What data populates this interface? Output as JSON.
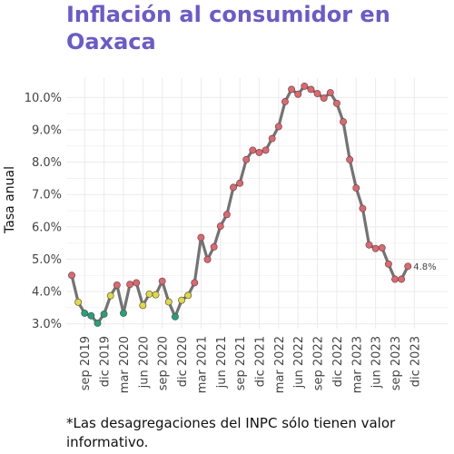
{
  "chart_data": {
    "type": "line",
    "title": "Inflación al consumidor en Oaxaca",
    "ylabel": "Tasa anual",
    "xlabel": "",
    "ylim": [
      2.85,
      10.6
    ],
    "yticks": [
      {
        "value": 3.0,
        "label": "3.0%"
      },
      {
        "value": 4.0,
        "label": "4.0%"
      },
      {
        "value": 5.0,
        "label": "5.0%"
      },
      {
        "value": 6.0,
        "label": "6.0%"
      },
      {
        "value": 7.0,
        "label": "7.0%"
      },
      {
        "value": 8.0,
        "label": "8.0%"
      },
      {
        "value": 9.0,
        "label": "9.0%"
      },
      {
        "value": 10.0,
        "label": "10.0%"
      }
    ],
    "xticks": [
      {
        "index": 2,
        "label": "sep 2019"
      },
      {
        "index": 5,
        "label": "dic 2019"
      },
      {
        "index": 8,
        "label": "mar 2020"
      },
      {
        "index": 11,
        "label": "jun 2020"
      },
      {
        "index": 14,
        "label": "sep 2020"
      },
      {
        "index": 17,
        "label": "dic 2020"
      },
      {
        "index": 20,
        "label": "mar 2021"
      },
      {
        "index": 23,
        "label": "jun 2021"
      },
      {
        "index": 26,
        "label": "sep 2021"
      },
      {
        "index": 29,
        "label": "dic 2021"
      },
      {
        "index": 32,
        "label": "mar 2022"
      },
      {
        "index": 35,
        "label": "jun 2022"
      },
      {
        "index": 38,
        "label": "sep 2022"
      },
      {
        "index": 41,
        "label": "dic 2022"
      },
      {
        "index": 44,
        "label": "mar 2023"
      },
      {
        "index": 47,
        "label": "jun 2023"
      },
      {
        "index": 50,
        "label": "sep 2023"
      },
      {
        "index": 53,
        "label": "dic 2023"
      }
    ],
    "values": [
      4.5,
      3.67,
      3.33,
      3.25,
      3.02,
      3.3,
      3.87,
      4.2,
      3.33,
      4.22,
      4.27,
      3.57,
      3.92,
      3.9,
      4.32,
      3.68,
      3.22,
      3.73,
      3.88,
      4.27,
      5.67,
      4.99,
      5.38,
      6.02,
      6.38,
      7.22,
      7.35,
      8.08,
      8.37,
      8.3,
      8.37,
      8.73,
      9.1,
      9.87,
      10.25,
      10.1,
      10.35,
      10.25,
      10.12,
      9.98,
      10.15,
      9.82,
      9.25,
      8.08,
      7.2,
      6.57,
      5.44,
      5.33,
      5.35,
      4.85,
      4.38,
      4.38,
      4.78
    ],
    "point_colors": [
      "#e8636b",
      "#e2d93d",
      "#20a47a",
      "#20a47a",
      "#20a47a",
      "#20a47a",
      "#e2d93d",
      "#e8636b",
      "#20a47a",
      "#e8636b",
      "#e8636b",
      "#e2d93d",
      "#e2d93d",
      "#e2d93d",
      "#e8636b",
      "#e2d93d",
      "#20a47a",
      "#e2d93d",
      "#e2d93d",
      "#e8636b",
      "#e8636b",
      "#e8636b",
      "#e8636b",
      "#e8636b",
      "#e8636b",
      "#e8636b",
      "#e8636b",
      "#e8636b",
      "#e8636b",
      "#e8636b",
      "#e8636b",
      "#e8636b",
      "#e8636b",
      "#e8636b",
      "#e8636b",
      "#e8636b",
      "#e8636b",
      "#e8636b",
      "#e8636b",
      "#e8636b",
      "#e8636b",
      "#e8636b",
      "#e8636b",
      "#e8636b",
      "#e8636b",
      "#e8636b",
      "#e8636b",
      "#e8636b",
      "#e8636b",
      "#e8636b",
      "#e8636b",
      "#e8636b",
      "#e8636b"
    ],
    "last_label": "4.8%",
    "line_color": "#737373",
    "grid": true
  },
  "footnote": "*Las desagregaciones del INPC sólo tienen valor informativo.",
  "colors": {
    "title": "#6a5acd",
    "grid": "#ebebeb"
  }
}
